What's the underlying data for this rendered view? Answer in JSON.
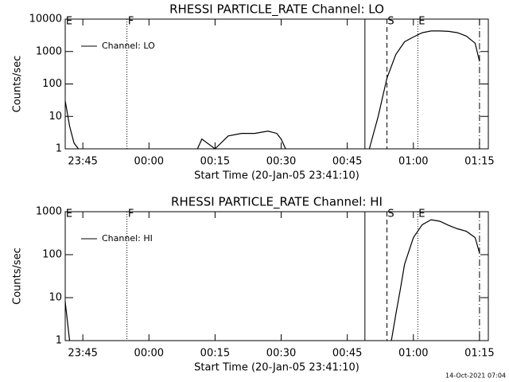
{
  "chart_data": [
    {
      "type": "line",
      "title": "RHESSI PARTICLE_RATE Channel: LO",
      "xlabel": "Start Time (20-Jan-05 23:41:10)",
      "ylabel": "Counts/sec",
      "log": true,
      "legend": "upper left",
      "x": [
        "23:41",
        "23:42",
        "23:43",
        "23:44",
        "23:45",
        "00:10",
        "00:11",
        "00:12",
        "00:15",
        "00:18",
        "00:21",
        "00:24",
        "00:27",
        "00:29",
        "00:30",
        "00:31",
        "00:49",
        "00:50",
        "00:52",
        "00:54",
        "00:56",
        "00:58",
        "01:00",
        "01:02",
        "01:04",
        "01:06",
        "01:08",
        "01:10",
        "01:12",
        "01:14",
        "01:15"
      ],
      "series": [
        {
          "name": "Channel: LO",
          "color": "#000000",
          "values": [
            30,
            5,
            1.5,
            1,
            null,
            null,
            1,
            2,
            1,
            2.5,
            3,
            3,
            3.5,
            3,
            2,
            1,
            null,
            1,
            10,
            150,
            800,
            2000,
            2800,
            3800,
            4300,
            4300,
            4200,
            3800,
            3000,
            1800,
            500
          ]
        }
      ],
      "xlim": [
        "23:41",
        "01:17"
      ],
      "xticks": [
        "23:45",
        "00:00",
        "00:15",
        "00:30",
        "00:45",
        "01:00",
        "01:15"
      ],
      "ylim": [
        1,
        10000
      ],
      "yticks": [
        1,
        10,
        100,
        1000,
        10000
      ],
      "vlines": [
        {
          "x": "23:41",
          "label": "E",
          "style": "none"
        },
        {
          "x": "23:55",
          "label": "F",
          "style": "dotted"
        },
        {
          "x": "00:49",
          "style": "solid"
        },
        {
          "x": "00:54",
          "label": "S",
          "style": "dashed"
        },
        {
          "x": "01:01",
          "label": "E",
          "style": "dotted"
        },
        {
          "x": "01:15",
          "style": "dashdot"
        }
      ]
    },
    {
      "type": "line",
      "title": "RHESSI PARTICLE_RATE Channel: HI",
      "xlabel": "Start Time (20-Jan-05 23:41:10)",
      "ylabel": "Counts/sec",
      "log": true,
      "legend": "upper left",
      "x": [
        "23:41",
        "23:42",
        "23:43",
        "00:54",
        "00:55",
        "00:56",
        "00:57",
        "00:58",
        "01:00",
        "01:02",
        "01:04",
        "01:06",
        "01:08",
        "01:10",
        "01:12",
        "01:14",
        "01:15"
      ],
      "series": [
        {
          "name": "Channel: HI",
          "color": "#000000",
          "values": [
            8,
            1,
            null,
            null,
            1,
            4,
            15,
            60,
            250,
            500,
            650,
            600,
            480,
            400,
            350,
            250,
            110
          ]
        }
      ],
      "xlim": [
        "23:41",
        "01:17"
      ],
      "xticks": [
        "23:45",
        "00:00",
        "00:15",
        "00:30",
        "00:45",
        "01:00",
        "01:15"
      ],
      "ylim": [
        1,
        1000
      ],
      "yticks": [
        1,
        10,
        100,
        1000
      ],
      "vlines": [
        {
          "x": "23:41",
          "label": "E",
          "style": "none"
        },
        {
          "x": "23:55",
          "label": "F",
          "style": "dotted"
        },
        {
          "x": "00:49",
          "style": "solid"
        },
        {
          "x": "00:54",
          "label": "S",
          "style": "dashed"
        },
        {
          "x": "01:01",
          "label": "E",
          "style": "dotted"
        },
        {
          "x": "01:15",
          "style": "dashdot"
        }
      ]
    }
  ],
  "footer": "14-Oct-2021 07:04"
}
